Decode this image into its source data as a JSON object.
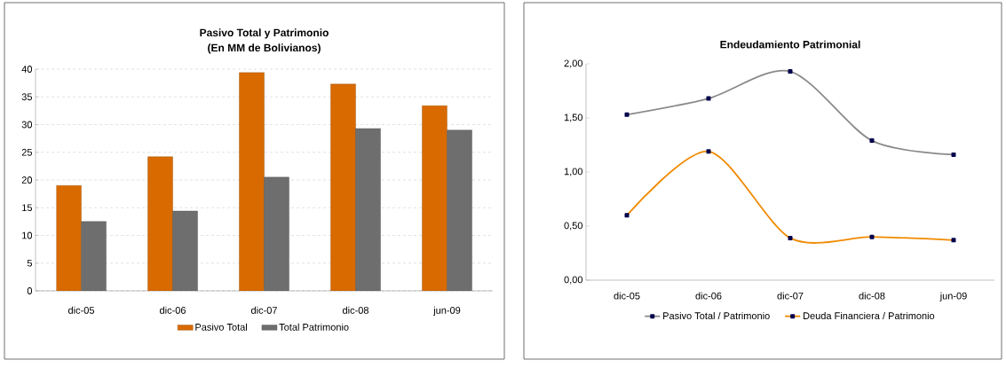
{
  "chart_data": [
    {
      "type": "bar",
      "title": "Pasivo Total y Patrimonio",
      "subtitle": "(En MM de Bolivianos)",
      "categories": [
        "dic-05",
        "dic-06",
        "dic-07",
        "dic-08",
        "jun-09"
      ],
      "series": [
        {
          "name": "Pasivo Total",
          "color": "#d86a00",
          "values": [
            19.0,
            24.2,
            39.4,
            37.3,
            33.4
          ]
        },
        {
          "name": "Total Patrimonio",
          "color": "#6e6e6e",
          "values": [
            12.5,
            14.4,
            20.5,
            29.3,
            29.0
          ]
        }
      ],
      "ylim": [
        0,
        40
      ],
      "yticks": [
        0,
        5,
        10,
        15,
        20,
        25,
        30,
        35,
        40
      ],
      "grid": "y",
      "legend": "bottom"
    },
    {
      "type": "line",
      "title": "Endeudamiento Patrimonial",
      "categories": [
        "dic-05",
        "dic-06",
        "dic-07",
        "dic-08",
        "jun-09"
      ],
      "series": [
        {
          "name": "Pasivo Total / Patrimonio",
          "color": "#8a8a8a",
          "values": [
            1.53,
            1.68,
            1.93,
            1.29,
            1.16
          ]
        },
        {
          "name": "Deuda Financiera / Patrimonio",
          "color": "#f08a00",
          "values": [
            0.6,
            1.19,
            0.39,
            0.4,
            0.37
          ]
        }
      ],
      "ylim": [
        0,
        2
      ],
      "yticks": [
        {
          "value": 0,
          "label": "0,00"
        },
        {
          "value": 0.5,
          "label": "0,50"
        },
        {
          "value": 1,
          "label": "1,00"
        },
        {
          "value": 1.5,
          "label": "1,50"
        },
        {
          "value": 2,
          "label": "2,00"
        }
      ],
      "legend": "bottom",
      "marker": "square"
    }
  ]
}
